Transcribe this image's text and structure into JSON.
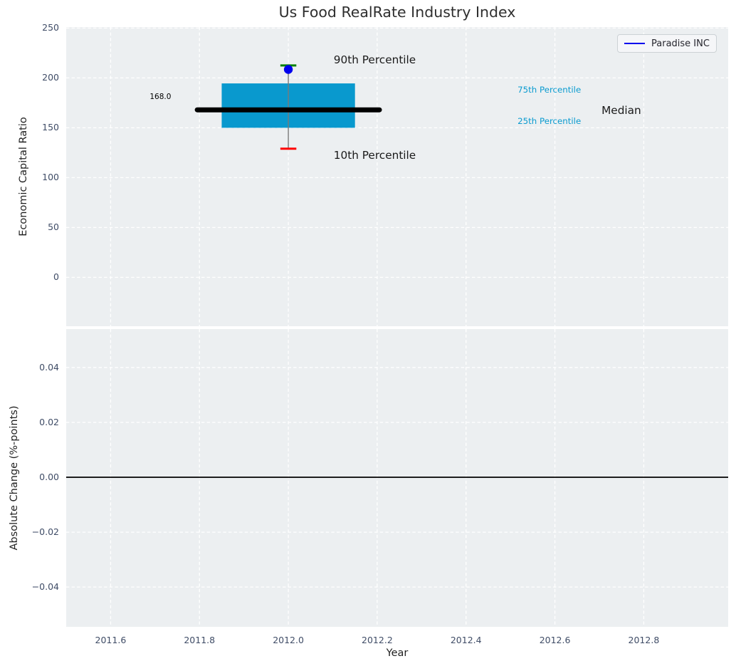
{
  "colors": {
    "figure_bg": "#FFFFFF",
    "axes_bg": "#ECEFF1",
    "grid": "#FFFFFF",
    "tick": "#3F4C66",
    "label": "#1F1F1F",
    "title": "#2E2E2E",
    "box_fill": "#0999CE",
    "median": "#000000",
    "whisker": "#7A7A7A",
    "cap_top": "#008000",
    "cap_bottom": "#FF0000",
    "point": "#0000EE",
    "zero_line": "#000000",
    "percentile_text": "#0A9BD0",
    "legend_line": "#0000EE"
  },
  "chart_data": [
    {
      "type": "box",
      "title": "Us Food RealRate Industry Index",
      "ylabel": "Economic Capital Ratio",
      "xlim": [
        2011.5,
        2012.99
      ],
      "ylim": [
        -49,
        251
      ],
      "yticks": [
        0,
        50,
        100,
        150,
        200,
        250
      ],
      "ytick_labels": [
        "0",
        "50",
        "100",
        "150",
        "200",
        "250"
      ],
      "xticks": [
        2011.6,
        2011.8,
        2012.0,
        2012.2,
        2012.4,
        2012.6,
        2012.8
      ],
      "grid": true,
      "legend": {
        "label": "Paradise INC",
        "loc": "upper right"
      },
      "box": {
        "x": 2012.0,
        "p10": 129,
        "p25": 150,
        "median": 168.0,
        "p75": 194.5,
        "p90": 212.5,
        "box_halfwidth": 0.15,
        "median_halfwidth": 0.205,
        "cap_halfwidth": 0.018
      },
      "company_point": {
        "label": "Paradise INC",
        "x": 2012.0,
        "value": 208.5
      },
      "annotations": [
        {
          "text": "90th Percentile",
          "x": 2012.102,
          "y": 218.0,
          "size": 15.3,
          "color": "#1a1a1a"
        },
        {
          "text": "10th Percentile",
          "x": 2012.102,
          "y": 122.5,
          "size": 15.3,
          "color": "#1a1a1a"
        },
        {
          "text": "168.0",
          "x": 2011.688,
          "y": 181.0,
          "size": 10.5,
          "color": "#000000"
        },
        {
          "text": "75th Percentile",
          "x": 2012.516,
          "y": 188.5,
          "size": 11.8,
          "color": "#0A9BD0"
        },
        {
          "text": "25th Percentile",
          "x": 2012.516,
          "y": 156.5,
          "size": 11.8,
          "color": "#0A9BD0"
        },
        {
          "text": "Median",
          "x": 2012.705,
          "y": 167.5,
          "size": 15.3,
          "color": "#1a1a1a"
        }
      ]
    },
    {
      "type": "line",
      "ylabel": "Absolute Change (%-points)",
      "xlabel": "Year",
      "xlim": [
        2011.5,
        2012.99
      ],
      "ylim": [
        -0.0545,
        0.054
      ],
      "yticks": [
        0.04,
        0.02,
        0.0,
        -0.02,
        -0.04
      ],
      "ytick_labels": [
        "0.04",
        "0.02",
        "0.00",
        "−0.02",
        "−0.04"
      ],
      "xticks": [
        2011.6,
        2011.8,
        2012.0,
        2012.2,
        2012.4,
        2012.6,
        2012.8
      ],
      "xtick_labels": [
        "2011.6",
        "2011.8",
        "2012.0",
        "2012.2",
        "2012.4",
        "2012.6",
        "2012.8"
      ],
      "grid": true,
      "zero_line": 0.0
    }
  ]
}
